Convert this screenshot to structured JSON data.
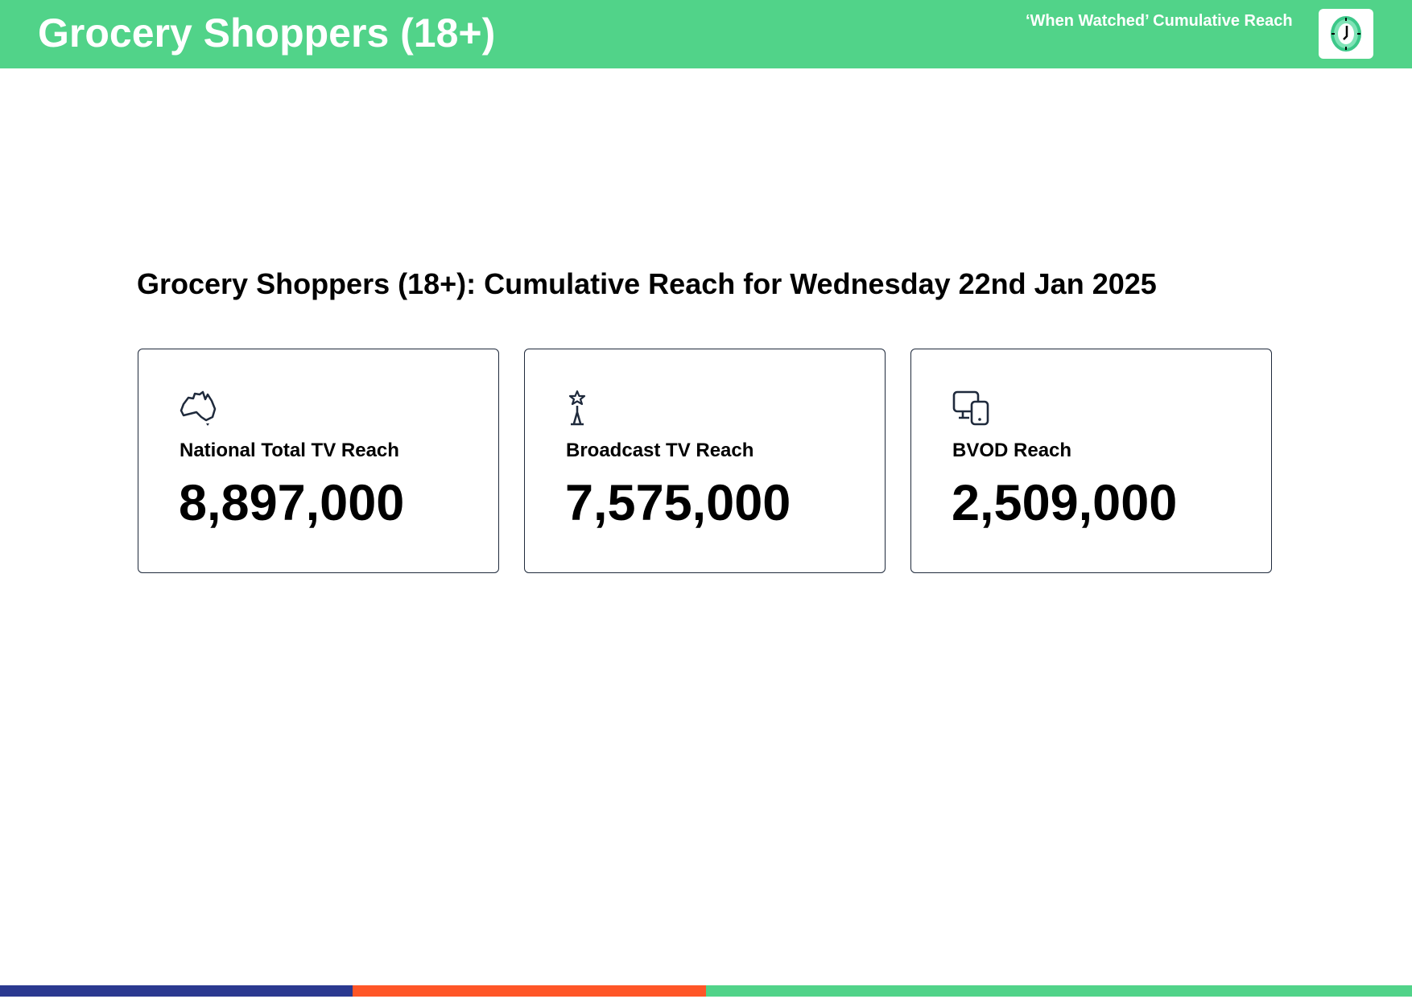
{
  "header": {
    "title": "Grocery Shoppers (18+)",
    "subtitle": "‘When Watched’ Cumulative Reach",
    "icon": "clock-icon",
    "background": "#51d389"
  },
  "main": {
    "heading": "Grocery Shoppers (18+): Cumulative Reach for Wednesday 22nd Jan 2025",
    "cards": [
      {
        "label": "National Total TV Reach",
        "value": "8,897,000",
        "icon": "australia-map-icon"
      },
      {
        "label": "Broadcast TV Reach",
        "value": "7,575,000",
        "icon": "broadcast-tower-icon"
      },
      {
        "label": "BVOD Reach",
        "value": "2,509,000",
        "icon": "devices-icon"
      }
    ]
  },
  "footer": {
    "colors": [
      "#2b3990",
      "#ff5627",
      "#51d389"
    ]
  }
}
